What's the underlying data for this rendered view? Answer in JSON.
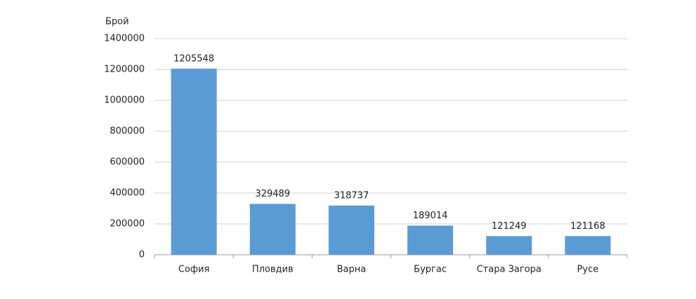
{
  "chart_data": {
    "type": "bar",
    "y_label": "Брой",
    "categories": [
      "София",
      "Пловдив",
      "Варна",
      "Бургас",
      "Стара Загора",
      "Русе"
    ],
    "values": [
      1205548,
      329489,
      318737,
      189014,
      121249,
      121168
    ],
    "color": "#5b9bd5",
    "ylim": [
      0,
      1400000
    ],
    "yticks": [
      0,
      200000,
      400000,
      600000,
      800000,
      1000000,
      1200000,
      1400000
    ],
    "grid": true,
    "data_labels": true
  }
}
